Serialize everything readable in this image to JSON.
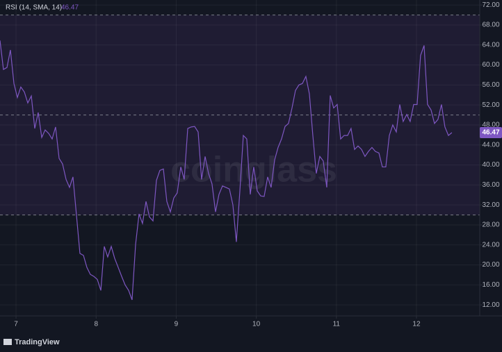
{
  "chart_data": {
    "type": "line",
    "watermark": "coinglass",
    "brand": "TradingView",
    "x": [
      6.8,
      6.843,
      6.887,
      6.93,
      6.974,
      7.017,
      7.06,
      7.104,
      7.147,
      7.191,
      7.234,
      7.277,
      7.321,
      7.364,
      7.408,
      7.451,
      7.494,
      7.538,
      7.581,
      7.625,
      7.668,
      7.711,
      7.755,
      7.798,
      7.842,
      7.885,
      7.928,
      7.972,
      8.015,
      8.059,
      8.102,
      8.145,
      8.189,
      8.232,
      8.276,
      8.319,
      8.362,
      8.406,
      8.449,
      8.493,
      8.536,
      8.579,
      8.623,
      8.666,
      8.71,
      8.753,
      8.796,
      8.84,
      8.883,
      8.927,
      8.97,
      9.013,
      9.057,
      9.1,
      9.144,
      9.187,
      9.23,
      9.274,
      9.317,
      9.361,
      9.404,
      9.447,
      9.491,
      9.534,
      9.578,
      9.621,
      9.664,
      9.708,
      9.751,
      9.795,
      9.838,
      9.881,
      9.925,
      9.968,
      10.012,
      10.055,
      10.098,
      10.142,
      10.185,
      10.229,
      10.272,
      10.315,
      10.359,
      10.402,
      10.446,
      10.489,
      10.532,
      10.576,
      10.619,
      10.663,
      10.706,
      10.749,
      10.793,
      10.836,
      10.88,
      10.923,
      10.966,
      11.01,
      11.053,
      11.097,
      11.14,
      11.183,
      11.227,
      11.27,
      11.314,
      11.357,
      11.4,
      11.444,
      11.487,
      11.531,
      11.574,
      11.617,
      11.661,
      11.704,
      11.748,
      11.791,
      11.834,
      11.878,
      11.921,
      11.965,
      12.008,
      12.051,
      12.095,
      12.138,
      12.182,
      12.225,
      12.268,
      12.312,
      12.355,
      12.399,
      12.442
    ],
    "series": [
      {
        "name": "RSI (14, SMA, 14)",
        "color": "#7e57c2",
        "values": [
          64.9,
          59.1,
          59.5,
          63.0,
          56.3,
          53.5,
          55.6,
          54.6,
          52.4,
          53.8,
          47.3,
          50.5,
          45.5,
          47.0,
          46.3,
          45.2,
          47.6,
          41.3,
          40.2,
          37.1,
          35.5,
          37.6,
          29.9,
          22.3,
          21.9,
          19.5,
          18.1,
          17.7,
          17.1,
          14.9,
          23.7,
          21.6,
          23.7,
          21.3,
          19.5,
          17.7,
          16.0,
          14.9,
          13.0,
          24.1,
          30.2,
          28.3,
          32.7,
          29.6,
          28.8,
          36.9,
          38.9,
          39.2,
          32.7,
          30.6,
          33.4,
          34.4,
          39.6,
          37.1,
          47.3,
          47.6,
          47.7,
          46.6,
          37.1,
          41.7,
          38.3,
          36.2,
          30.6,
          34.1,
          35.8,
          35.5,
          35.2,
          32.0,
          24.6,
          34.8,
          45.9,
          45.2,
          34.1,
          39.6,
          34.8,
          33.8,
          33.7,
          37.6,
          35.5,
          41.0,
          43.5,
          45.2,
          47.7,
          48.3,
          51.4,
          54.9,
          56.0,
          56.3,
          57.7,
          54.2,
          45.9,
          38.3,
          41.7,
          40.8,
          35.5,
          53.9,
          51.4,
          52.1,
          45.2,
          45.9,
          45.9,
          47.3,
          43.1,
          43.8,
          43.1,
          41.7,
          42.7,
          43.5,
          42.7,
          42.4,
          39.6,
          39.6,
          45.9,
          48.0,
          46.6,
          52.1,
          48.7,
          50.1,
          48.7,
          52.1,
          52.1,
          61.9,
          63.9,
          52.1,
          51.0,
          48.3,
          49.1,
          52.1,
          47.6,
          45.9,
          46.47
        ]
      }
    ],
    "xlim": [
      6.8,
      12.79
    ],
    "ylim": [
      9.8,
      73
    ],
    "xticks": [
      7,
      8,
      9,
      10,
      11,
      12
    ],
    "yticks": [
      {
        "value": 12,
        "label": "12.00"
      },
      {
        "value": 16,
        "label": "16.00"
      },
      {
        "value": 20,
        "label": "20.00"
      },
      {
        "value": 24,
        "label": "24.00"
      },
      {
        "value": 28,
        "label": "28.00"
      },
      {
        "value": 32,
        "label": "32.00"
      },
      {
        "value": 36,
        "label": "36.00"
      },
      {
        "value": 40,
        "label": "40.00"
      },
      {
        "value": 44,
        "label": "44.00"
      },
      {
        "value": 48,
        "label": "48.00"
      },
      {
        "value": 52,
        "label": "52.00"
      },
      {
        "value": 56,
        "label": "56.00"
      },
      {
        "value": 60,
        "label": "60.00"
      },
      {
        "value": 64,
        "label": "64.00"
      },
      {
        "value": 68,
        "label": "68.00"
      },
      {
        "value": 72,
        "label": "72.00"
      }
    ],
    "band": [
      30,
      70
    ],
    "levels": [
      70,
      50,
      30
    ]
  }
}
